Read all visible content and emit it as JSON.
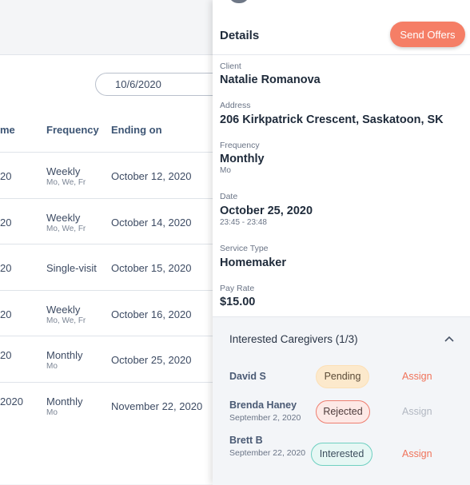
{
  "filter": {
    "date_value": "10/6/2020"
  },
  "table": {
    "headers": {
      "time_partial": "me",
      "frequency": "Frequency",
      "ending_on": "Ending on"
    },
    "rows": [
      {
        "time_partial": "20",
        "frequency": "Weekly",
        "days": "Mo, We, Fr",
        "ending_on": "October 12, 2020"
      },
      {
        "time_partial": "20",
        "frequency": "Weekly",
        "days": "Mo, We, Fr",
        "ending_on": "October 14, 2020"
      },
      {
        "time_partial": "20",
        "frequency": "Single-visit",
        "days": "",
        "ending_on": "October 15, 2020"
      },
      {
        "time_partial": "20",
        "frequency": "Weekly",
        "days": "Mo, We, Fr",
        "ending_on": "October 16, 2020"
      },
      {
        "time_partial": "20",
        "frequency": "Monthly",
        "days": "Mo",
        "ending_on": "October 25, 2020"
      },
      {
        "time_partial": "2020",
        "frequency": "Monthly",
        "days": "Mo",
        "ending_on": "November 22, 2020"
      }
    ]
  },
  "details": {
    "title": "Details",
    "send_offers_label": "Send Offers",
    "client_label": "Client",
    "client_value": "Natalie Romanova",
    "address_label": "Address",
    "address_value": "206 Kirkpatrick Crescent, Saskatoon, SK",
    "frequency_label": "Frequency",
    "frequency_value": "Monthly",
    "frequency_days": "Mo",
    "date_label": "Date",
    "date_value": "October 25, 2020",
    "time_range": "23:45 - 23:48",
    "service_type_label": "Service Type",
    "service_type_value": "Homemaker",
    "pay_rate_label": "Pay Rate",
    "pay_rate_value": "$15.00"
  },
  "interested": {
    "title": "Interested Caregivers (1/3)",
    "chevron_icon": "chevron-up-icon",
    "caregivers": [
      {
        "name": "David S",
        "date": "",
        "status": "Pending",
        "action": "Assign"
      },
      {
        "name": "Brenda Haney",
        "date": "September 2, 2020",
        "status": "Rejected",
        "action": "Assign"
      },
      {
        "name": "Brett B",
        "date": "September 22, 2020",
        "status": "Interested",
        "action": "Assign"
      }
    ]
  },
  "colors": {
    "accent": "#f57e66",
    "pending_bg": "#fce9cc",
    "rejected_border": "#ee7e70",
    "interested_border": "#6fd0c1"
  }
}
